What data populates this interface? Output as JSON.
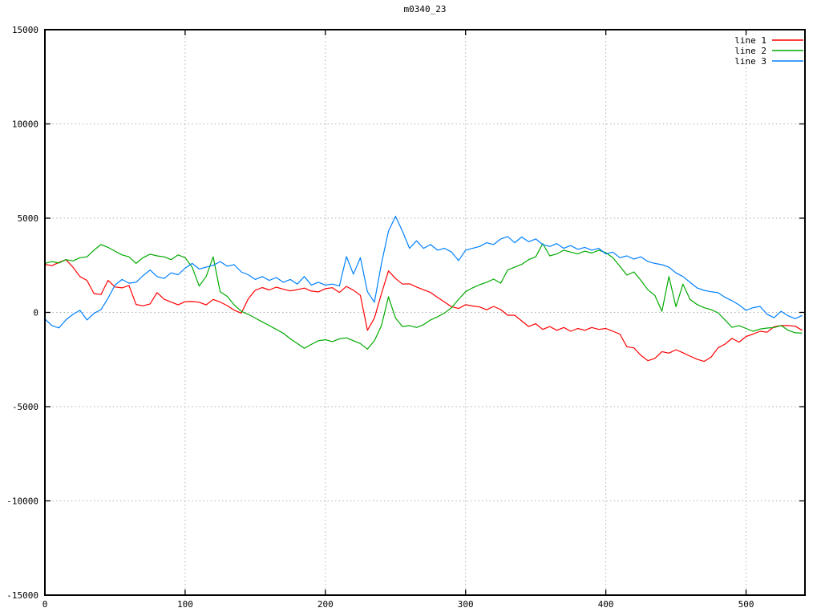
{
  "chart_data": {
    "type": "line",
    "title": "m0340_23",
    "xlabel": "",
    "ylabel": "",
    "xlim": [
      0,
      542
    ],
    "ylim": [
      -15000,
      15000
    ],
    "x_ticks": [
      0,
      100,
      200,
      300,
      400,
      500
    ],
    "y_ticks": [
      -15000,
      -10000,
      -5000,
      0,
      5000,
      10000,
      15000
    ],
    "grid": "dotted",
    "grid_color": "#b0b0b0",
    "axis_color": "#000000",
    "background": "#ffffff",
    "legend_position": "top-right-inside",
    "x_start": 0,
    "x_step": 5,
    "series": [
      {
        "name": "line 1",
        "color": "#ff0000",
        "values": [
          2550,
          2480,
          2650,
          2800,
          2400,
          1900,
          1700,
          1000,
          950,
          1700,
          1350,
          1300,
          1430,
          420,
          350,
          450,
          1050,
          700,
          550,
          400,
          570,
          580,
          540,
          400,
          690,
          550,
          360,
          120,
          -40,
          720,
          1180,
          1320,
          1190,
          1340,
          1230,
          1140,
          1210,
          1290,
          1130,
          1090,
          1260,
          1310,
          1060,
          1380,
          1180,
          900,
          -950,
          -300,
          1000,
          2200,
          1800,
          1500,
          1520,
          1350,
          1200,
          1060,
          800,
          550,
          300,
          210,
          410,
          340,
          290,
          140,
          320,
          150,
          -150,
          -150,
          -450,
          -750,
          -600,
          -900,
          -750,
          -950,
          -800,
          -1000,
          -850,
          -950,
          -800,
          -900,
          -850,
          -1000,
          -1150,
          -1820,
          -1880,
          -2280,
          -2560,
          -2440,
          -2080,
          -2160,
          -1980,
          -2140,
          -2320,
          -2480,
          -2600,
          -2380,
          -1880,
          -1680,
          -1380,
          -1580,
          -1280,
          -1150,
          -1000,
          -1050,
          -760,
          -700,
          -700,
          -730,
          -950
        ]
      },
      {
        "name": "line 2",
        "color": "#00aa00",
        "values": [
          2600,
          2700,
          2620,
          2800,
          2730,
          2900,
          2950,
          3300,
          3600,
          3450,
          3250,
          3050,
          2950,
          2600,
          2900,
          3090,
          3000,
          2950,
          2800,
          3050,
          2900,
          2400,
          1400,
          1900,
          2950,
          1100,
          850,
          400,
          60,
          -100,
          -300,
          -500,
          -700,
          -900,
          -1100,
          -1400,
          -1650,
          -1900,
          -1700,
          -1500,
          -1450,
          -1550,
          -1400,
          -1350,
          -1500,
          -1650,
          -1950,
          -1500,
          -700,
          830,
          -300,
          -750,
          -700,
          -800,
          -650,
          -400,
          -230,
          -30,
          250,
          700,
          1100,
          1300,
          1470,
          1600,
          1765,
          1550,
          2250,
          2400,
          2550,
          2800,
          2950,
          3650,
          3000,
          3100,
          3300,
          3200,
          3100,
          3250,
          3150,
          3300,
          3170,
          2900,
          2450,
          1980,
          2150,
          1700,
          1200,
          900,
          60,
          1900,
          300,
          1500,
          700,
          420,
          250,
          150,
          -20,
          -400,
          -790,
          -700,
          -850,
          -1000,
          -880,
          -830,
          -800,
          -700,
          -950,
          -1080,
          -1100
        ]
      },
      {
        "name": "line 3",
        "color": "#0080ff",
        "values": [
          -350,
          -700,
          -820,
          -400,
          -100,
          110,
          -400,
          -50,
          150,
          750,
          1450,
          1750,
          1550,
          1600,
          1950,
          2250,
          1900,
          1800,
          2100,
          2000,
          2350,
          2600,
          2300,
          2400,
          2500,
          2700,
          2450,
          2530,
          2150,
          2000,
          1750,
          1900,
          1700,
          1850,
          1600,
          1750,
          1500,
          1900,
          1450,
          1600,
          1450,
          1500,
          1400,
          2960,
          2030,
          2900,
          1100,
          540,
          2600,
          4300,
          5100,
          4300,
          3400,
          3800,
          3400,
          3600,
          3300,
          3400,
          3200,
          2750,
          3300,
          3400,
          3500,
          3700,
          3600,
          3900,
          4025,
          3700,
          4000,
          3750,
          3900,
          3600,
          3500,
          3650,
          3400,
          3550,
          3350,
          3450,
          3300,
          3400,
          3100,
          3200,
          2900,
          3000,
          2830,
          2950,
          2700,
          2600,
          2530,
          2400,
          2100,
          1900,
          1600,
          1300,
          1170,
          1100,
          1045,
          800,
          620,
          400,
          105,
          250,
          320,
          -100,
          -280,
          60,
          -180,
          -330,
          -160
        ]
      }
    ]
  }
}
